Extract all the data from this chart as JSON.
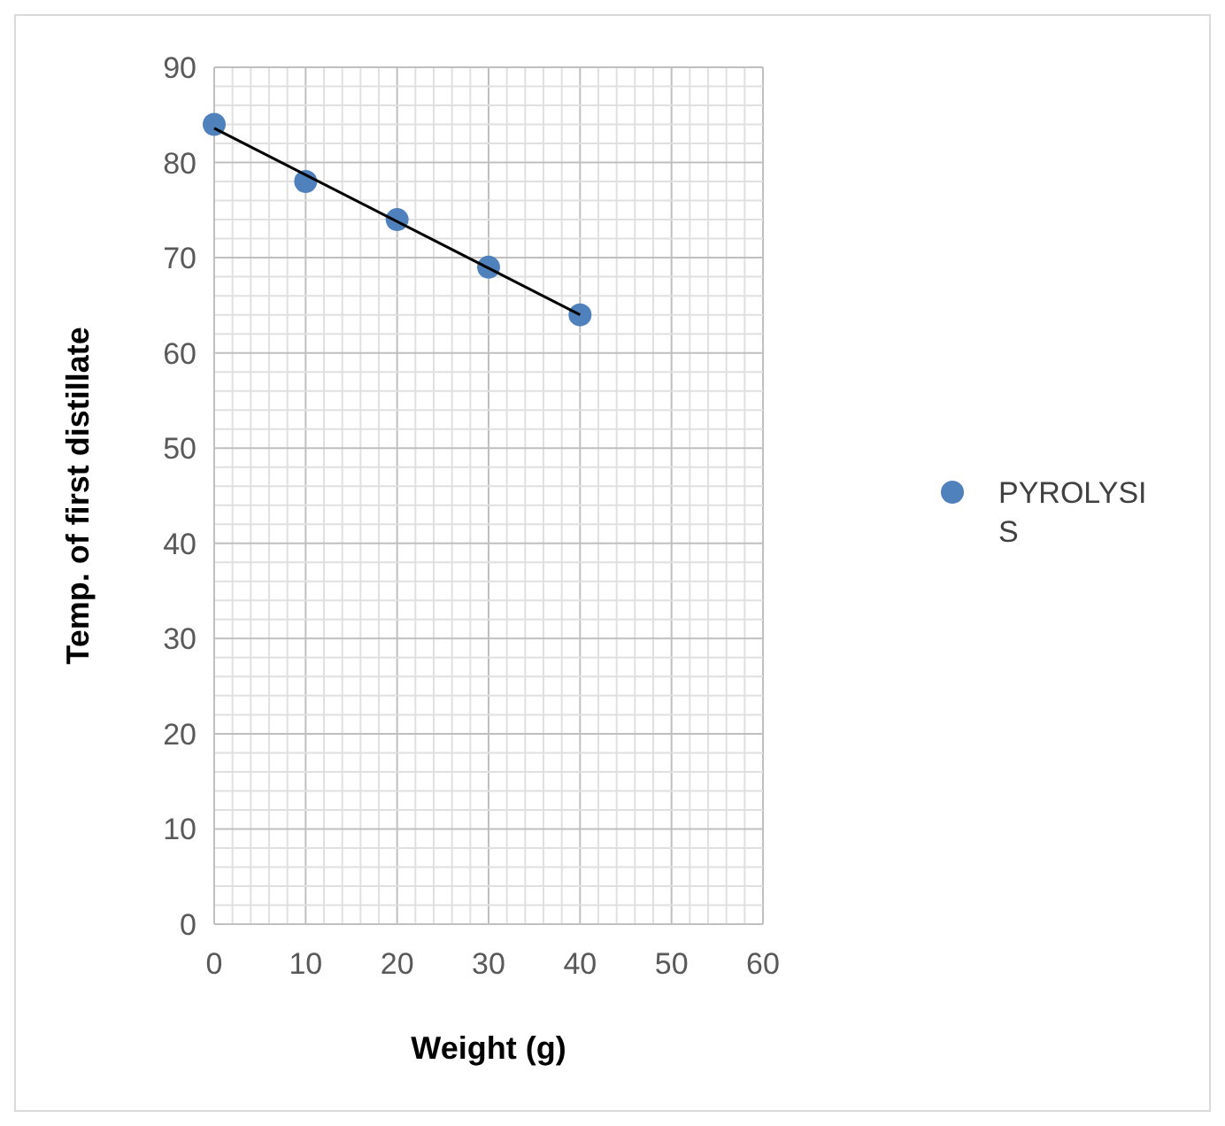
{
  "chart_data": {
    "type": "scatter",
    "xlabel": "Weight (g)",
    "ylabel": "Temp. of first distillate",
    "xlim": [
      0,
      60
    ],
    "ylim": [
      0,
      90
    ],
    "xticks": [
      0,
      {
        "value": 2,
        "label": null
      },
      {
        "value": 4,
        "label": null
      },
      {
        "value": 6,
        "label": null
      },
      {
        "value": 8,
        "label": null
      },
      10,
      {
        "value": 12,
        "label": null
      },
      {
        "value": 14,
        "label": null
      },
      {
        "value": 16,
        "label": null
      },
      {
        "value": 18,
        "label": null
      },
      20,
      {
        "value": 22,
        "label": null
      },
      {
        "value": 24,
        "label": null
      },
      {
        "value": 26,
        "label": null
      },
      {
        "value": 28,
        "label": null
      },
      30,
      {
        "value": 32,
        "label": null
      },
      {
        "value": 34,
        "label": null
      },
      {
        "value": 36,
        "label": null
      },
      {
        "value": 38,
        "label": null
      },
      40,
      {
        "value": 42,
        "label": null
      },
      {
        "value": 44,
        "label": null
      },
      {
        "value": 46,
        "label": null
      },
      {
        "value": 48,
        "label": null
      },
      50,
      {
        "value": 52,
        "label": null
      },
      {
        "value": 54,
        "label": null
      },
      {
        "value": 56,
        "label": null
      },
      {
        "value": 58,
        "label": null
      },
      60
    ],
    "yticks": [
      0,
      {
        "value": 2,
        "label": null
      },
      {
        "value": 4,
        "label": null
      },
      {
        "value": 6,
        "label": null
      },
      {
        "value": 8,
        "label": null
      },
      10,
      {
        "value": 12,
        "label": null
      },
      {
        "value": 14,
        "label": null
      },
      {
        "value": 16,
        "label": null
      },
      {
        "value": 18,
        "label": null
      },
      20,
      {
        "value": 22,
        "label": null
      },
      {
        "value": 24,
        "label": null
      },
      {
        "value": 26,
        "label": null
      },
      {
        "value": 28,
        "label": null
      },
      30,
      {
        "value": 32,
        "label": null
      },
      {
        "value": 34,
        "label": null
      },
      {
        "value": 36,
        "label": null
      },
      {
        "value": 38,
        "label": null
      },
      40,
      {
        "value": 42,
        "label": null
      },
      {
        "value": 44,
        "label": null
      },
      {
        "value": 46,
        "label": null
      },
      {
        "value": 48,
        "label": null
      },
      50,
      {
        "value": 52,
        "label": null
      },
      {
        "value": 54,
        "label": null
      },
      {
        "value": 56,
        "label": null
      },
      {
        "value": 58,
        "label": null
      },
      60,
      {
        "value": 62,
        "label": null
      },
      {
        "value": 64,
        "label": null
      },
      {
        "value": 66,
        "label": null
      },
      {
        "value": 68,
        "label": null
      },
      70,
      {
        "value": 72,
        "label": null
      },
      {
        "value": 74,
        "label": null
      },
      {
        "value": 76,
        "label": null
      },
      {
        "value": 78,
        "label": null
      },
      80,
      {
        "value": 82,
        "label": null
      },
      {
        "value": 84,
        "label": null
      },
      {
        "value": 86,
        "label": null
      },
      {
        "value": 88,
        "label": null
      },
      90
    ],
    "grid": true,
    "legend": "right",
    "series": [
      {
        "name": "PYROLYSIS",
        "color": "#4f81bd",
        "marker": "circle",
        "x": [
          0,
          10,
          20,
          30,
          40
        ],
        "values": [
          84,
          78,
          74,
          69,
          64
        ]
      },
      {
        "type": "line",
        "color": "#000000",
        "marker": "none",
        "x": [
          0,
          40
        ],
        "values": [
          83.6,
          64.0
        ],
        "line_style": "solid"
      }
    ]
  }
}
